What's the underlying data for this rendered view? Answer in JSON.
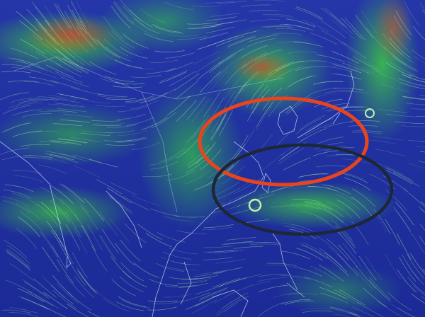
{
  "map": {
    "type": "wind-flow-visualization",
    "palette": {
      "calm": "#1b2c9c",
      "moderate": "#3cc84a",
      "strong": "#c8463a"
    },
    "annotations": [
      {
        "name": "red-ellipse",
        "color": "#e8441e"
      },
      {
        "name": "dark-ellipse",
        "color": "#1c2838"
      }
    ]
  }
}
